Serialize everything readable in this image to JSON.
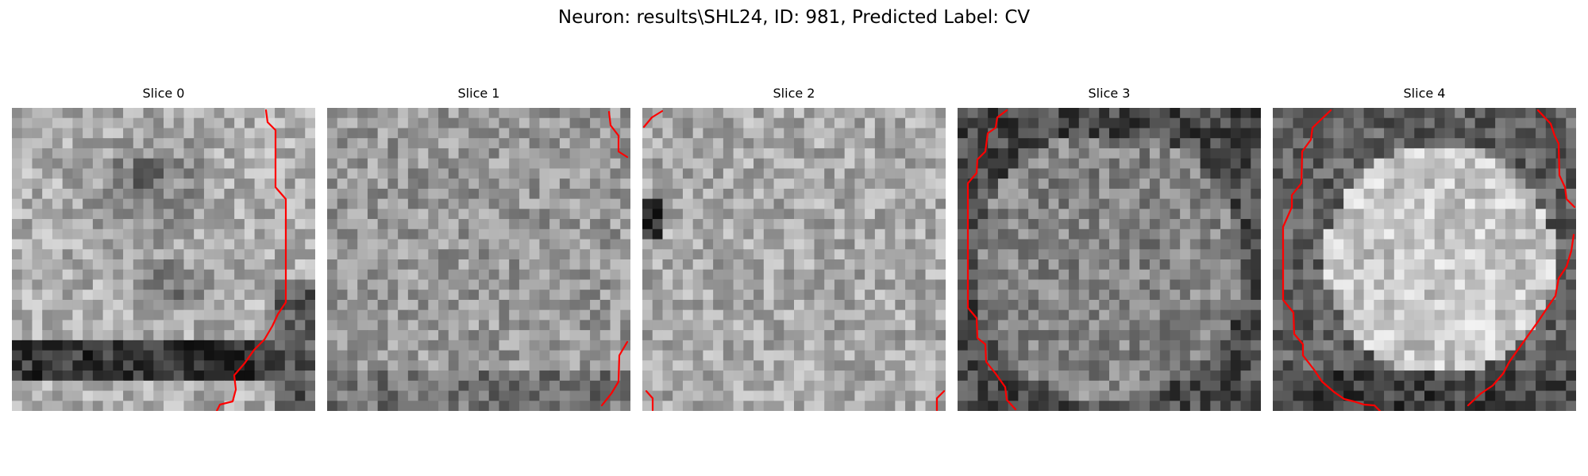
{
  "figure": {
    "title": "Neuron: results\\SHL24, ID: 981, Predicted Label: CV"
  },
  "panels": [
    {
      "title": "Slice 0"
    },
    {
      "title": "Slice 1"
    },
    {
      "title": "Slice 2"
    },
    {
      "title": "Slice 3"
    },
    {
      "title": "Slice 4"
    }
  ],
  "colors": {
    "contour": "#ff0000",
    "colormap": "grayscale"
  }
}
